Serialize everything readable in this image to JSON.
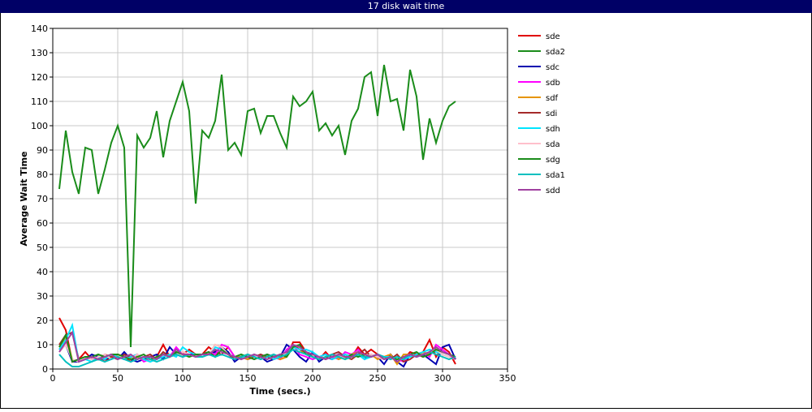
{
  "chart_data": {
    "type": "line",
    "title": "17 disk wait time",
    "x_label": "Time (secs.)",
    "y_label": "Average Wait Time",
    "xlim": [
      0,
      350
    ],
    "xticks": [
      0,
      50,
      100,
      150,
      200,
      250,
      300,
      350
    ],
    "ylim": [
      0,
      140
    ],
    "yticks": [
      0,
      10,
      20,
      30,
      40,
      50,
      60,
      70,
      80,
      90,
      100,
      110,
      120,
      130,
      140
    ],
    "grid": true,
    "legend": "right",
    "x": [
      5,
      10,
      15,
      20,
      25,
      30,
      35,
      40,
      45,
      50,
      55,
      60,
      65,
      70,
      75,
      80,
      85,
      90,
      95,
      100,
      105,
      110,
      115,
      120,
      125,
      130,
      135,
      140,
      145,
      150,
      155,
      160,
      165,
      170,
      175,
      180,
      185,
      190,
      195,
      200,
      205,
      210,
      215,
      220,
      225,
      230,
      235,
      240,
      245,
      250,
      255,
      260,
      265,
      270,
      275,
      280,
      285,
      290,
      295,
      300,
      305,
      310
    ],
    "series": [
      {
        "name": "sde",
        "color": "#e00000",
        "values": [
          21,
          16,
          3,
          4,
          7,
          4,
          5,
          3,
          5,
          6,
          5,
          3,
          6,
          4,
          4,
          5,
          10,
          5,
          7,
          6,
          8,
          6,
          6,
          9,
          7,
          6,
          9,
          5,
          5,
          4,
          5,
          5,
          6,
          5,
          4,
          5,
          11,
          11,
          7,
          5,
          4,
          7,
          4,
          5,
          6,
          5,
          9,
          6,
          8,
          6,
          5,
          6,
          3,
          4,
          7,
          6,
          7,
          12,
          5,
          9,
          7,
          2
        ]
      },
      {
        "name": "sda2",
        "color": "#1a8c1a",
        "values": [
          74,
          98,
          81,
          72,
          91,
          90,
          72,
          82,
          93,
          100,
          91,
          9,
          96,
          91,
          95,
          106,
          87,
          102,
          110,
          118,
          106,
          68,
          98,
          95,
          102,
          121,
          90,
          93,
          88,
          106,
          107,
          97,
          104,
          104,
          97,
          91,
          112,
          108,
          110,
          114,
          98,
          101,
          96,
          100,
          88,
          102,
          107,
          120,
          122,
          104,
          125,
          110,
          111,
          98,
          123,
          112,
          86,
          103,
          93,
          102,
          108,
          110
        ]
      },
      {
        "name": "sdc",
        "color": "#0000b0",
        "values": [
          8,
          10,
          3,
          3,
          4,
          6,
          5,
          4,
          5,
          4,
          7,
          4,
          3,
          4,
          5,
          6,
          4,
          9,
          6,
          5,
          6,
          6,
          5,
          6,
          7,
          9,
          7,
          3,
          5,
          4,
          6,
          5,
          3,
          4,
          5,
          10,
          8,
          5,
          3,
          7,
          3,
          5,
          4,
          6,
          5,
          5,
          6,
          4,
          6,
          5,
          2,
          6,
          3,
          1,
          6,
          5,
          6,
          4,
          2,
          9,
          10,
          4
        ]
      },
      {
        "name": "sdb",
        "color": "#ff00ff",
        "values": [
          8,
          12,
          3,
          4,
          5,
          4,
          5,
          4,
          6,
          5,
          4,
          5,
          6,
          3,
          4,
          5,
          6,
          5,
          9,
          6,
          6,
          5,
          6,
          7,
          6,
          10,
          9,
          5,
          4,
          6,
          5,
          4,
          6,
          5,
          4,
          8,
          10,
          6,
          5,
          4,
          5,
          6,
          5,
          4,
          7,
          6,
          8,
          5,
          6,
          5,
          4,
          5,
          4,
          3,
          6,
          5,
          7,
          5,
          10,
          8,
          6,
          5
        ]
      },
      {
        "name": "sdf",
        "color": "#e69500",
        "values": [
          9,
          13,
          4,
          3,
          5,
          4,
          4,
          5,
          5,
          6,
          5,
          4,
          5,
          4,
          3,
          5,
          6,
          5,
          7,
          6,
          5,
          6,
          5,
          6,
          10,
          9,
          6,
          5,
          5,
          4,
          6,
          5,
          5,
          6,
          4,
          5,
          9,
          8,
          6,
          5,
          4,
          5,
          6,
          4,
          5,
          6,
          7,
          5,
          6,
          4,
          5,
          6,
          2,
          6,
          6,
          5,
          7,
          6,
          8,
          6,
          5,
          4
        ]
      },
      {
        "name": "sdi",
        "color": "#a52a2a",
        "values": [
          10,
          14,
          15,
          4,
          5,
          5,
          4,
          6,
          5,
          4,
          6,
          5,
          4,
          5,
          6,
          4,
          7,
          5,
          6,
          7,
          6,
          5,
          6,
          7,
          5,
          8,
          6,
          4,
          5,
          6,
          5,
          6,
          5,
          4,
          5,
          6,
          10,
          8,
          7,
          6,
          5,
          4,
          6,
          7,
          5,
          4,
          6,
          8,
          5,
          6,
          5,
          4,
          6,
          3,
          4,
          6,
          5,
          6,
          9,
          7,
          6,
          4
        ]
      },
      {
        "name": "sdh",
        "color": "#00e5ff",
        "values": [
          8,
          12,
          18,
          3,
          4,
          3,
          5,
          4,
          6,
          5,
          4,
          5,
          6,
          4,
          3,
          4,
          5,
          6,
          5,
          9,
          7,
          6,
          5,
          6,
          9,
          8,
          6,
          5,
          4,
          6,
          5,
          5,
          6,
          4,
          5,
          7,
          9,
          8,
          8,
          7,
          5,
          6,
          4,
          5,
          6,
          5,
          6,
          4,
          5,
          6,
          5,
          5,
          4,
          4,
          5,
          6,
          7,
          8,
          7,
          6,
          5,
          4
        ]
      },
      {
        "name": "sda",
        "color": "#ffc0cb",
        "values": [
          7,
          10,
          4,
          3,
          5,
          4,
          5,
          6,
          4,
          5,
          5,
          4,
          6,
          5,
          4,
          5,
          6,
          5,
          6,
          7,
          6,
          5,
          6,
          6,
          10,
          9,
          6,
          5,
          4,
          5,
          6,
          4,
          5,
          6,
          5,
          7,
          10,
          9,
          7,
          6,
          5,
          4,
          5,
          6,
          4,
          5,
          6,
          5,
          6,
          5,
          4,
          5,
          4,
          5,
          6,
          5,
          6,
          7,
          8,
          6,
          5,
          4
        ]
      },
      {
        "name": "sdg",
        "color": "#1a8c1a",
        "values": [
          9,
          14,
          3,
          4,
          5,
          5,
          6,
          5,
          6,
          6,
          5,
          4,
          5,
          6,
          4,
          5,
          6,
          5,
          7,
          6,
          5,
          6,
          6,
          7,
          5,
          8,
          6,
          5,
          6,
          5,
          4,
          5,
          6,
          5,
          6,
          5,
          9,
          10,
          6,
          5,
          4,
          5,
          6,
          5,
          4,
          6,
          5,
          6,
          5,
          6,
          4,
          5,
          4,
          5,
          6,
          7,
          5,
          6,
          8,
          7,
          6,
          5
        ]
      },
      {
        "name": "sda1",
        "color": "#00bfbf",
        "values": [
          6,
          3,
          1,
          1,
          2,
          3,
          4,
          3,
          4,
          5,
          4,
          3,
          4,
          5,
          4,
          3,
          4,
          5,
          6,
          5,
          6,
          5,
          5,
          6,
          5,
          6,
          5,
          4,
          5,
          6,
          5,
          4,
          5,
          6,
          5,
          6,
          8,
          7,
          6,
          5,
          4,
          5,
          6,
          5,
          4,
          5,
          6,
          5,
          5,
          6,
          5,
          4,
          5,
          4,
          6,
          5,
          6,
          7,
          6,
          5,
          4,
          5
        ]
      },
      {
        "name": "sdd",
        "color": "#a040a0",
        "values": [
          7,
          11,
          15,
          3,
          4,
          5,
          4,
          5,
          6,
          4,
          5,
          6,
          4,
          5,
          5,
          4,
          6,
          5,
          8,
          6,
          6,
          5,
          6,
          6,
          8,
          7,
          6,
          5,
          4,
          5,
          6,
          5,
          4,
          5,
          6,
          7,
          10,
          9,
          7,
          6,
          5,
          4,
          5,
          6,
          5,
          5,
          7,
          6,
          5,
          6,
          4,
          5,
          3,
          5,
          6,
          5,
          6,
          7,
          9,
          7,
          6,
          4
        ]
      }
    ]
  }
}
